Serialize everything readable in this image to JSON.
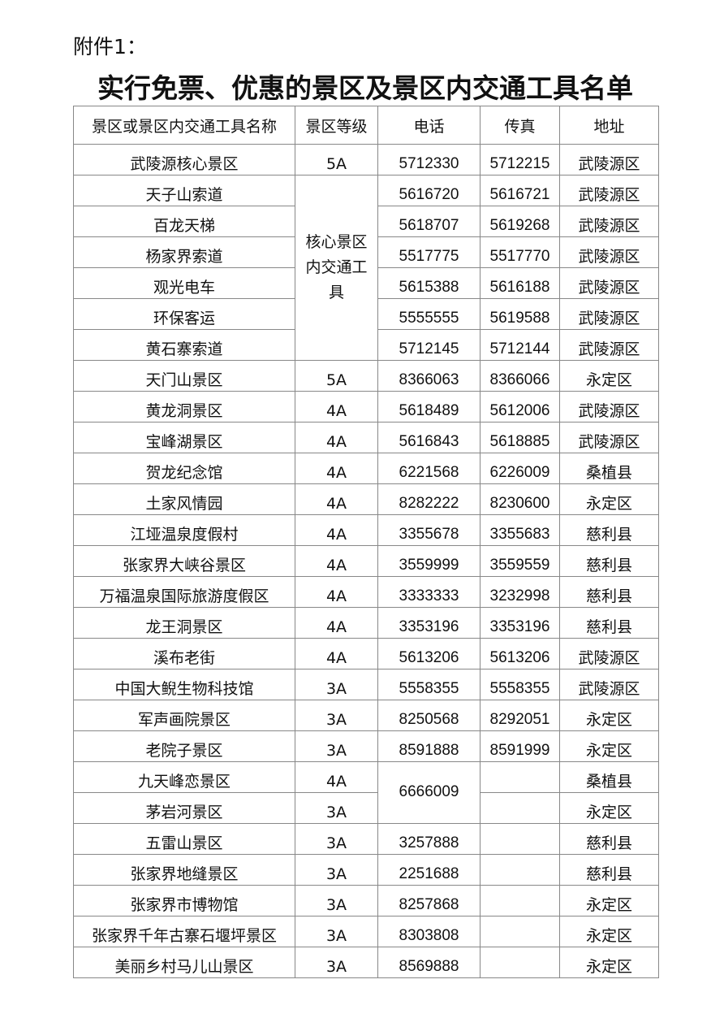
{
  "attachment_label": "附件1：",
  "title": "实行免票、优惠的景区及景区内交通工具名单",
  "table": {
    "headers": [
      "景区或景区内交通工具名称",
      "景区等级",
      "电话",
      "传真",
      "地址"
    ],
    "rows": [
      {
        "name": "武陵源核心景区",
        "level": "5A",
        "phone": "5712330",
        "fax": "5712215",
        "address": "武陵源区"
      },
      {
        "name": "天子山索道",
        "level": "核心景区内交通工具",
        "phone": "5616720",
        "fax": "5616721",
        "address": "武陵源区"
      },
      {
        "name": "百龙天梯",
        "phone": "5618707",
        "fax": "5619268",
        "address": "武陵源区"
      },
      {
        "name": "杨家界索道",
        "phone": "5517775",
        "fax": "5517770",
        "address": "武陵源区"
      },
      {
        "name": "观光电车",
        "phone": "5615388",
        "fax": "5616188",
        "address": "武陵源区"
      },
      {
        "name": "环保客运",
        "phone": "5555555",
        "fax": "5619588",
        "address": "武陵源区"
      },
      {
        "name": "黄石寨索道",
        "phone": "5712145",
        "fax": "5712144",
        "address": "武陵源区"
      },
      {
        "name": "天门山景区",
        "level": "5A",
        "phone": "8366063",
        "fax": "8366066",
        "address": "永定区"
      },
      {
        "name": "黄龙洞景区",
        "level": "4A",
        "phone": "5618489",
        "fax": "5612006",
        "address": "武陵源区"
      },
      {
        "name": "宝峰湖景区",
        "level": "4A",
        "phone": "5616843",
        "fax": "5618885",
        "address": "武陵源区"
      },
      {
        "name": "贺龙纪念馆",
        "level": "4A",
        "phone": "6221568",
        "fax": "6226009",
        "address": "桑植县"
      },
      {
        "name": "土家风情园",
        "level": "4A",
        "phone": "8282222",
        "fax": "8230600",
        "address": "永定区"
      },
      {
        "name": "江垭温泉度假村",
        "level": "4A",
        "phone": "3355678",
        "fax": "3355683",
        "address": "慈利县"
      },
      {
        "name": "张家界大峡谷景区",
        "level": "4A",
        "phone": "3559999",
        "fax": "3559559",
        "address": "慈利县"
      },
      {
        "name": "万福温泉国际旅游度假区",
        "level": "4A",
        "phone": "3333333",
        "fax": "3232998",
        "address": "慈利县"
      },
      {
        "name": "龙王洞景区",
        "level": "4A",
        "phone": "3353196",
        "fax": "3353196",
        "address": "慈利县"
      },
      {
        "name": "溪布老街",
        "level": "4A",
        "phone": "5613206",
        "fax": "5613206",
        "address": "武陵源区"
      },
      {
        "name": "中国大鲵生物科技馆",
        "level": "3A",
        "phone": "5558355",
        "fax": "5558355",
        "address": "武陵源区"
      },
      {
        "name": "军声画院景区",
        "level": "3A",
        "phone": "8250568",
        "fax": "8292051",
        "address": "永定区"
      },
      {
        "name": "老院子景区",
        "level": "3A",
        "phone": "8591888",
        "fax": "8591999",
        "address": "永定区"
      },
      {
        "name": "九天峰恋景区",
        "level": "4A",
        "phone": "6666009",
        "fax": "",
        "address": "桑植县"
      },
      {
        "name": "茅岩河景区",
        "level": "3A",
        "fax": "",
        "address": "永定区"
      },
      {
        "name": "五雷山景区",
        "level": "3A",
        "phone": "3257888",
        "fax": "",
        "address": "慈利县"
      },
      {
        "name": "张家界地缝景区",
        "level": "3A",
        "phone": "2251688",
        "fax": "",
        "address": "慈利县"
      },
      {
        "name": "张家界市博物馆",
        "level": "3A",
        "phone": "8257868",
        "fax": "",
        "address": "永定区"
      },
      {
        "name": "张家界千年古寨石堰坪景区",
        "level": "3A",
        "phone": "8303808",
        "fax": "",
        "address": "永定区"
      },
      {
        "name": "美丽乡村马儿山景区",
        "level": "3A",
        "phone": "8569888",
        "fax": "",
        "address": "永定区"
      }
    ]
  }
}
